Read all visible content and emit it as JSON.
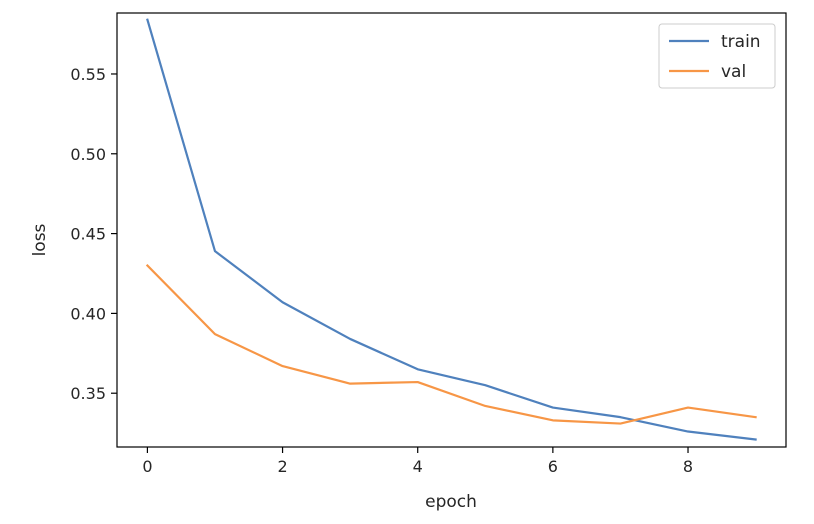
{
  "chart_data": {
    "type": "line",
    "title": "",
    "xlabel": "epoch",
    "ylabel": "loss",
    "x": [
      0,
      1,
      2,
      3,
      4,
      5,
      6,
      7,
      8,
      9
    ],
    "series": [
      {
        "name": "train",
        "color": "#4f81bd",
        "values": [
          0.584,
          0.439,
          0.407,
          0.384,
          0.365,
          0.355,
          0.341,
          0.335,
          0.326,
          0.321
        ]
      },
      {
        "name": "val",
        "color": "#f79646",
        "values": [
          0.43,
          0.387,
          0.367,
          0.356,
          0.357,
          0.342,
          0.333,
          0.331,
          0.341,
          0.335
        ]
      }
    ],
    "xlim": [
      -0.45,
      9.45
    ],
    "ylim": [
      0.3163,
      0.5882
    ],
    "xticks": [
      0,
      2,
      4,
      6,
      8
    ],
    "xtick_labels": [
      "0",
      "2",
      "4",
      "6",
      "8"
    ],
    "yticks": [
      0.35,
      0.4,
      0.45,
      0.5,
      0.55
    ],
    "ytick_labels": [
      "0.35",
      "0.40",
      "0.45",
      "0.50",
      "0.55"
    ],
    "grid": false,
    "legend_position": "top-right"
  }
}
